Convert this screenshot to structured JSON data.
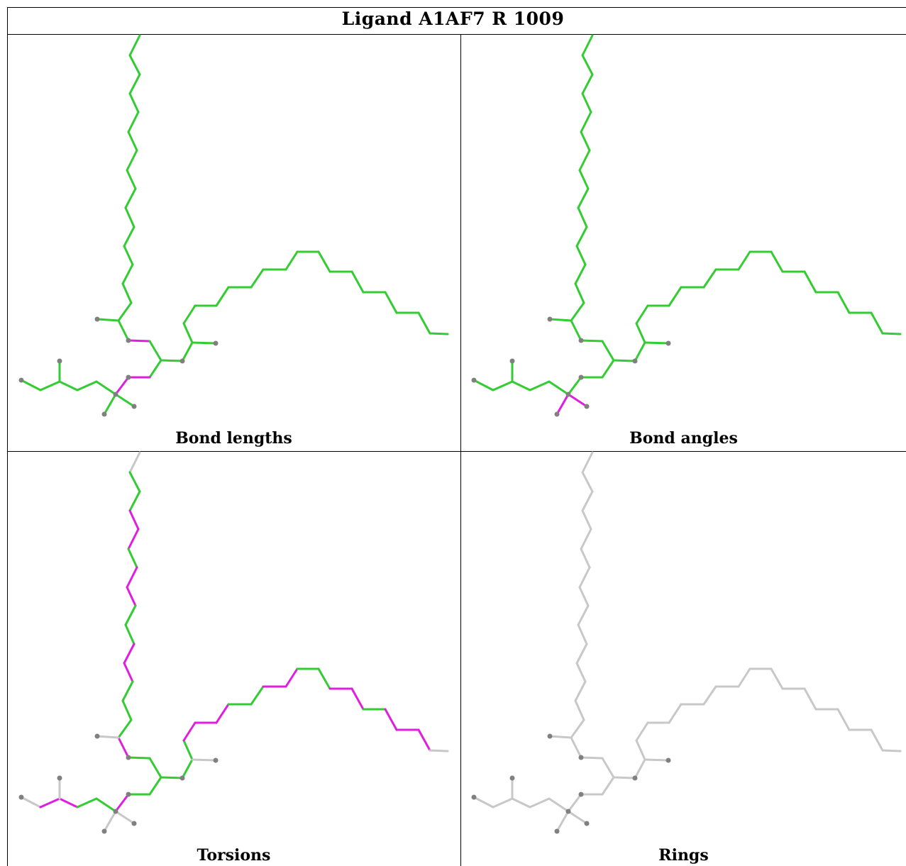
{
  "title": "Ligand A1AF7 R 1009",
  "panels": [
    {
      "id": "bond-lengths",
      "caption": "Bond lengths",
      "scheme": "bond_lengths"
    },
    {
      "id": "bond-angles",
      "caption": "Bond angles",
      "scheme": "bond_angles"
    },
    {
      "id": "torsions",
      "caption": "Torsions",
      "scheme": "torsions"
    },
    {
      "id": "rings",
      "caption": "Rings",
      "scheme": "rings"
    }
  ],
  "colors": {
    "ok": "#33cc33",
    "outlier": "#e01ee0",
    "neutral": "#c8c8c8",
    "atom": "#808080"
  }
}
